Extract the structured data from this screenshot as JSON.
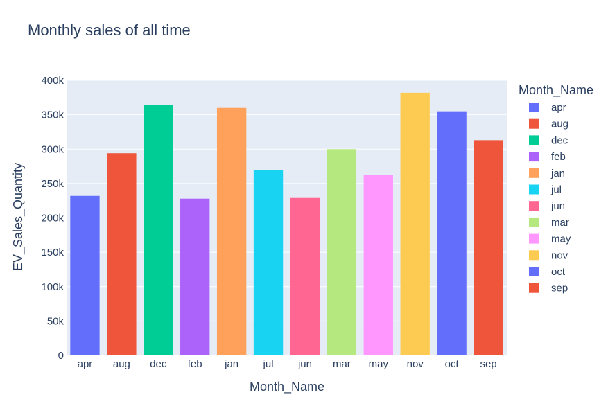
{
  "chart_data": {
    "type": "bar",
    "title": "Monthly sales of all time",
    "xlabel": "Month_Name",
    "ylabel": "EV_Sales_Quantity",
    "ylim": [
      0,
      400000
    ],
    "yticks": [
      0,
      50000,
      100000,
      150000,
      200000,
      250000,
      300000,
      350000,
      400000
    ],
    "ytick_labels": [
      "0",
      "50k",
      "100k",
      "150k",
      "200k",
      "250k",
      "300k",
      "350k",
      "400k"
    ],
    "grid": true,
    "legend": {
      "title": "Month_Name",
      "placement": "right"
    },
    "categories": [
      "apr",
      "aug",
      "dec",
      "feb",
      "jan",
      "jul",
      "jun",
      "mar",
      "may",
      "nov",
      "oct",
      "sep"
    ],
    "values": [
      232000,
      294000,
      364000,
      228000,
      360000,
      270000,
      229000,
      300000,
      262000,
      382000,
      355000,
      313000
    ],
    "colors": [
      "#636efa",
      "#EF553B",
      "#00cc96",
      "#ab63fa",
      "#FFA15A",
      "#19d3f3",
      "#FF6692",
      "#B6E880",
      "#FF97FF",
      "#FECB52",
      "#636efa",
      "#EF553B"
    ]
  }
}
